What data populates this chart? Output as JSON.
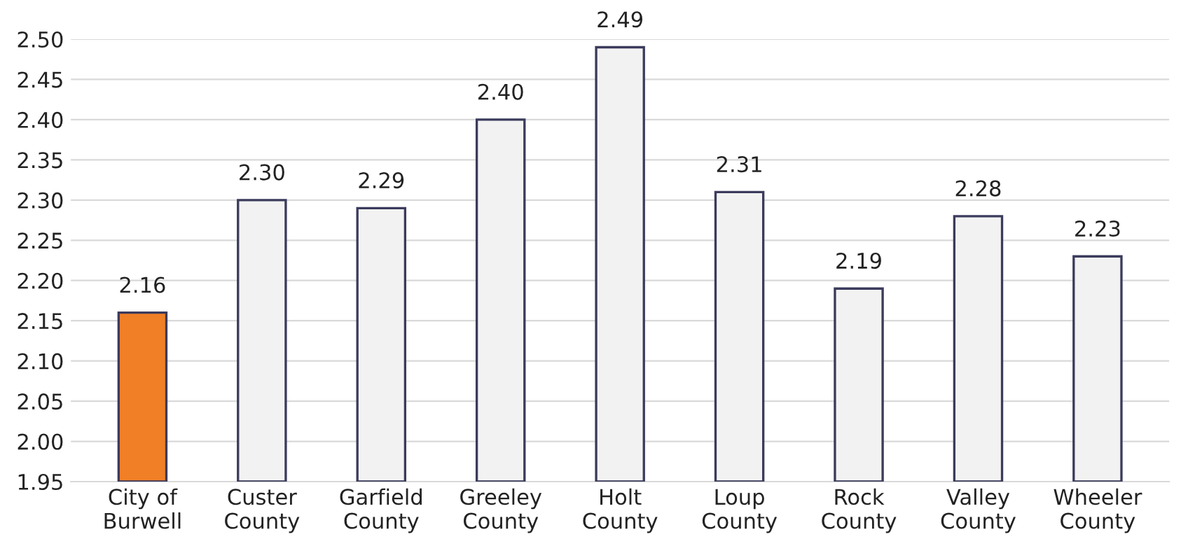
{
  "chart_data": {
    "type": "bar",
    "categories": [
      "City of\nBurwell",
      "Custer\nCounty",
      "Garfield\nCounty",
      "Greeley\nCounty",
      "Holt\nCounty",
      "Loup\nCounty",
      "Rock\nCounty",
      "Valley\nCounty",
      "Wheeler\nCounty"
    ],
    "values": [
      2.16,
      2.3,
      2.29,
      2.4,
      2.49,
      2.31,
      2.19,
      2.28,
      2.23
    ],
    "colors": [
      "#f07f26",
      "#f2f2f2",
      "#f2f2f2",
      "#f2f2f2",
      "#f2f2f2",
      "#f2f2f2",
      "#f2f2f2",
      "#f2f2f2",
      "#f2f2f2"
    ],
    "value_labels": [
      "2.16",
      "2.30",
      "2.29",
      "2.40",
      "2.49",
      "2.31",
      "2.19",
      "2.28",
      "2.23"
    ],
    "ylim": [
      1.95,
      2.5
    ],
    "yticks": [
      {
        "value": 1.95,
        "label": "1.95"
      },
      {
        "value": 2.0,
        "label": "2.00"
      },
      {
        "value": 2.05,
        "label": "2.05"
      },
      {
        "value": 2.1,
        "label": "2.10"
      },
      {
        "value": 2.15,
        "label": "2.15"
      },
      {
        "value": 2.2,
        "label": "2.20"
      },
      {
        "value": 2.25,
        "label": "2.25"
      },
      {
        "value": 2.3,
        "label": "2.30"
      },
      {
        "value": 2.35,
        "label": "2.35"
      },
      {
        "value": 2.4,
        "label": "2.40"
      },
      {
        "value": 2.45,
        "label": "2.45"
      },
      {
        "value": 2.5,
        "label": "2.50"
      }
    ],
    "grid": "y",
    "legend": false
  }
}
